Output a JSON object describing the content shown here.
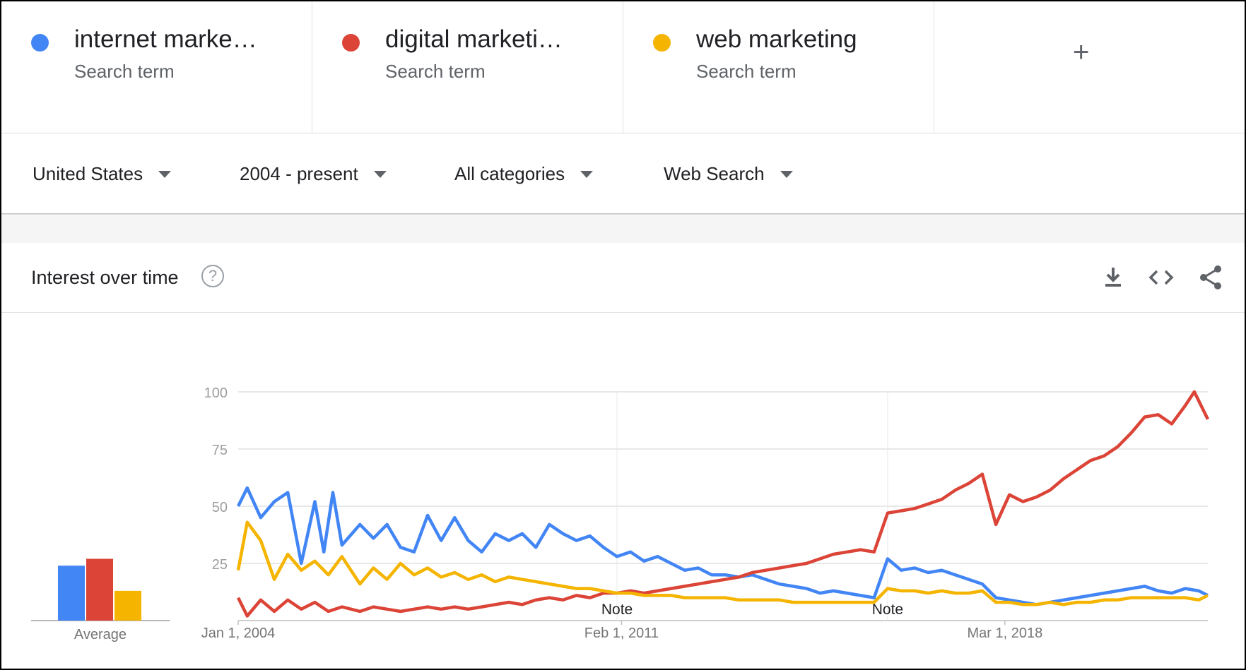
{
  "terms": [
    {
      "label": "internet marke…",
      "sublabel": "Search term",
      "color": "#4285f4"
    },
    {
      "label": "digital marketi…",
      "sublabel": "Search term",
      "color": "#db4437"
    },
    {
      "label": "web marketing",
      "sublabel": "Search term",
      "color": "#f4b400"
    }
  ],
  "add_term": {
    "icon": "plus-icon",
    "glyph": "+"
  },
  "filters": {
    "region": "United States",
    "time_range": "2004 - present",
    "category": "All categories",
    "search_type": "Web Search"
  },
  "card": {
    "title": "Interest over time",
    "help_glyph": "?",
    "actions": [
      "download-icon",
      "embed-icon",
      "share-icon"
    ]
  },
  "chart_data": {
    "type": "line",
    "x_start": "2004-01",
    "x_end": "2021-12",
    "x_ticks": [
      {
        "date": "2004-01",
        "label": "Jan 1, 2004"
      },
      {
        "date": "2011-02",
        "label": "Feb 1, 2011"
      },
      {
        "date": "2018-03",
        "label": "Mar 1, 2018"
      }
    ],
    "ylim": [
      0,
      100
    ],
    "y_ticks": [
      25,
      50,
      75,
      100
    ],
    "grid": true,
    "notes": [
      {
        "date": "2011-01",
        "label": "Note"
      },
      {
        "date": "2016-01",
        "label": "Note"
      }
    ],
    "series": [
      {
        "name": "internet marke…",
        "color": "#4285f4",
        "points": [
          [
            "2004-01",
            50
          ],
          [
            "2004-03",
            58
          ],
          [
            "2004-06",
            45
          ],
          [
            "2004-09",
            52
          ],
          [
            "2004-12",
            56
          ],
          [
            "2005-03",
            25
          ],
          [
            "2005-06",
            52
          ],
          [
            "2005-08",
            30
          ],
          [
            "2005-10",
            56
          ],
          [
            "2005-12",
            33
          ],
          [
            "2006-04",
            42
          ],
          [
            "2006-07",
            36
          ],
          [
            "2006-10",
            42
          ],
          [
            "2007-01",
            32
          ],
          [
            "2007-04",
            30
          ],
          [
            "2007-07",
            46
          ],
          [
            "2007-10",
            35
          ],
          [
            "2008-01",
            45
          ],
          [
            "2008-04",
            35
          ],
          [
            "2008-07",
            30
          ],
          [
            "2008-10",
            38
          ],
          [
            "2009-01",
            35
          ],
          [
            "2009-04",
            38
          ],
          [
            "2009-07",
            32
          ],
          [
            "2009-10",
            42
          ],
          [
            "2010-01",
            38
          ],
          [
            "2010-04",
            35
          ],
          [
            "2010-07",
            37
          ],
          [
            "2010-10",
            32
          ],
          [
            "2011-01",
            28
          ],
          [
            "2011-04",
            30
          ],
          [
            "2011-07",
            26
          ],
          [
            "2011-10",
            28
          ],
          [
            "2012-01",
            25
          ],
          [
            "2012-04",
            22
          ],
          [
            "2012-07",
            23
          ],
          [
            "2012-10",
            20
          ],
          [
            "2013-01",
            20
          ],
          [
            "2013-04",
            19
          ],
          [
            "2013-07",
            20
          ],
          [
            "2013-10",
            18
          ],
          [
            "2014-01",
            16
          ],
          [
            "2014-04",
            15
          ],
          [
            "2014-07",
            14
          ],
          [
            "2014-10",
            12
          ],
          [
            "2015-01",
            13
          ],
          [
            "2015-04",
            12
          ],
          [
            "2015-07",
            11
          ],
          [
            "2015-10",
            10
          ],
          [
            "2016-01",
            27
          ],
          [
            "2016-04",
            22
          ],
          [
            "2016-07",
            23
          ],
          [
            "2016-10",
            21
          ],
          [
            "2017-01",
            22
          ],
          [
            "2017-04",
            20
          ],
          [
            "2017-07",
            18
          ],
          [
            "2017-10",
            16
          ],
          [
            "2018-01",
            10
          ],
          [
            "2018-04",
            9
          ],
          [
            "2018-07",
            8
          ],
          [
            "2018-10",
            7
          ],
          [
            "2019-01",
            8
          ],
          [
            "2019-04",
            9
          ],
          [
            "2019-07",
            10
          ],
          [
            "2019-10",
            11
          ],
          [
            "2020-01",
            12
          ],
          [
            "2020-04",
            13
          ],
          [
            "2020-07",
            14
          ],
          [
            "2020-10",
            15
          ],
          [
            "2021-01",
            13
          ],
          [
            "2021-04",
            12
          ],
          [
            "2021-07",
            14
          ],
          [
            "2021-10",
            13
          ],
          [
            "2021-12",
            11
          ]
        ]
      },
      {
        "name": "digital marketi…",
        "color": "#db4437",
        "points": [
          [
            "2004-01",
            10
          ],
          [
            "2004-03",
            2
          ],
          [
            "2004-06",
            9
          ],
          [
            "2004-09",
            4
          ],
          [
            "2004-12",
            9
          ],
          [
            "2005-03",
            5
          ],
          [
            "2005-06",
            8
          ],
          [
            "2005-09",
            4
          ],
          [
            "2005-12",
            6
          ],
          [
            "2006-04",
            4
          ],
          [
            "2006-07",
            6
          ],
          [
            "2006-10",
            5
          ],
          [
            "2007-01",
            4
          ],
          [
            "2007-04",
            5
          ],
          [
            "2007-07",
            6
          ],
          [
            "2007-10",
            5
          ],
          [
            "2008-01",
            6
          ],
          [
            "2008-04",
            5
          ],
          [
            "2008-07",
            6
          ],
          [
            "2008-10",
            7
          ],
          [
            "2009-01",
            8
          ],
          [
            "2009-04",
            7
          ],
          [
            "2009-07",
            9
          ],
          [
            "2009-10",
            10
          ],
          [
            "2010-01",
            9
          ],
          [
            "2010-04",
            11
          ],
          [
            "2010-07",
            10
          ],
          [
            "2010-10",
            12
          ],
          [
            "2011-01",
            12
          ],
          [
            "2011-04",
            13
          ],
          [
            "2011-07",
            12
          ],
          [
            "2011-10",
            13
          ],
          [
            "2012-01",
            14
          ],
          [
            "2012-04",
            15
          ],
          [
            "2012-07",
            16
          ],
          [
            "2012-10",
            17
          ],
          [
            "2013-01",
            18
          ],
          [
            "2013-04",
            19
          ],
          [
            "2013-07",
            21
          ],
          [
            "2013-10",
            22
          ],
          [
            "2014-01",
            23
          ],
          [
            "2014-04",
            24
          ],
          [
            "2014-07",
            25
          ],
          [
            "2014-10",
            27
          ],
          [
            "2015-01",
            29
          ],
          [
            "2015-04",
            30
          ],
          [
            "2015-07",
            31
          ],
          [
            "2015-10",
            30
          ],
          [
            "2016-01",
            47
          ],
          [
            "2016-04",
            48
          ],
          [
            "2016-07",
            49
          ],
          [
            "2016-10",
            51
          ],
          [
            "2017-01",
            53
          ],
          [
            "2017-04",
            57
          ],
          [
            "2017-07",
            60
          ],
          [
            "2017-10",
            64
          ],
          [
            "2018-01",
            42
          ],
          [
            "2018-04",
            55
          ],
          [
            "2018-07",
            52
          ],
          [
            "2018-10",
            54
          ],
          [
            "2019-01",
            57
          ],
          [
            "2019-04",
            62
          ],
          [
            "2019-07",
            66
          ],
          [
            "2019-10",
            70
          ],
          [
            "2020-01",
            72
          ],
          [
            "2020-04",
            76
          ],
          [
            "2020-07",
            82
          ],
          [
            "2020-10",
            89
          ],
          [
            "2021-01",
            90
          ],
          [
            "2021-04",
            86
          ],
          [
            "2021-07",
            94
          ],
          [
            "2021-09",
            100
          ],
          [
            "2021-12",
            88
          ]
        ]
      },
      {
        "name": "web marketing",
        "color": "#f4b400",
        "points": [
          [
            "2004-01",
            22
          ],
          [
            "2004-03",
            43
          ],
          [
            "2004-06",
            35
          ],
          [
            "2004-09",
            18
          ],
          [
            "2004-12",
            29
          ],
          [
            "2005-03",
            22
          ],
          [
            "2005-06",
            26
          ],
          [
            "2005-09",
            20
          ],
          [
            "2005-12",
            28
          ],
          [
            "2006-04",
            16
          ],
          [
            "2006-07",
            23
          ],
          [
            "2006-10",
            18
          ],
          [
            "2007-01",
            25
          ],
          [
            "2007-04",
            20
          ],
          [
            "2007-07",
            23
          ],
          [
            "2007-10",
            19
          ],
          [
            "2008-01",
            21
          ],
          [
            "2008-04",
            18
          ],
          [
            "2008-07",
            20
          ],
          [
            "2008-10",
            17
          ],
          [
            "2009-01",
            19
          ],
          [
            "2009-04",
            18
          ],
          [
            "2009-07",
            17
          ],
          [
            "2009-10",
            16
          ],
          [
            "2010-01",
            15
          ],
          [
            "2010-04",
            14
          ],
          [
            "2010-07",
            14
          ],
          [
            "2010-10",
            13
          ],
          [
            "2011-01",
            12
          ],
          [
            "2011-04",
            12
          ],
          [
            "2011-07",
            11
          ],
          [
            "2011-10",
            11
          ],
          [
            "2012-01",
            11
          ],
          [
            "2012-04",
            10
          ],
          [
            "2012-07",
            10
          ],
          [
            "2012-10",
            10
          ],
          [
            "2013-01",
            10
          ],
          [
            "2013-04",
            9
          ],
          [
            "2013-07",
            9
          ],
          [
            "2013-10",
            9
          ],
          [
            "2014-01",
            9
          ],
          [
            "2014-04",
            8
          ],
          [
            "2014-07",
            8
          ],
          [
            "2014-10",
            8
          ],
          [
            "2015-01",
            8
          ],
          [
            "2015-04",
            8
          ],
          [
            "2015-07",
            8
          ],
          [
            "2015-10",
            8
          ],
          [
            "2016-01",
            14
          ],
          [
            "2016-04",
            13
          ],
          [
            "2016-07",
            13
          ],
          [
            "2016-10",
            12
          ],
          [
            "2017-01",
            13
          ],
          [
            "2017-04",
            12
          ],
          [
            "2017-07",
            12
          ],
          [
            "2017-10",
            13
          ],
          [
            "2018-01",
            8
          ],
          [
            "2018-04",
            8
          ],
          [
            "2018-07",
            7
          ],
          [
            "2018-10",
            7
          ],
          [
            "2019-01",
            8
          ],
          [
            "2019-04",
            7
          ],
          [
            "2019-07",
            8
          ],
          [
            "2019-10",
            8
          ],
          [
            "2020-01",
            9
          ],
          [
            "2020-04",
            9
          ],
          [
            "2020-07",
            10
          ],
          [
            "2020-10",
            10
          ],
          [
            "2021-01",
            10
          ],
          [
            "2021-04",
            10
          ],
          [
            "2021-07",
            10
          ],
          [
            "2021-10",
            9
          ],
          [
            "2021-12",
            11
          ]
        ]
      }
    ],
    "average_chart": {
      "type": "bar",
      "label": "Average",
      "values": [
        {
          "name": "internet marke…",
          "value": 24,
          "color": "#4285f4"
        },
        {
          "name": "digital marketi…",
          "value": 27,
          "color": "#db4437"
        },
        {
          "name": "web marketing",
          "value": 13,
          "color": "#f4b400"
        }
      ]
    }
  }
}
